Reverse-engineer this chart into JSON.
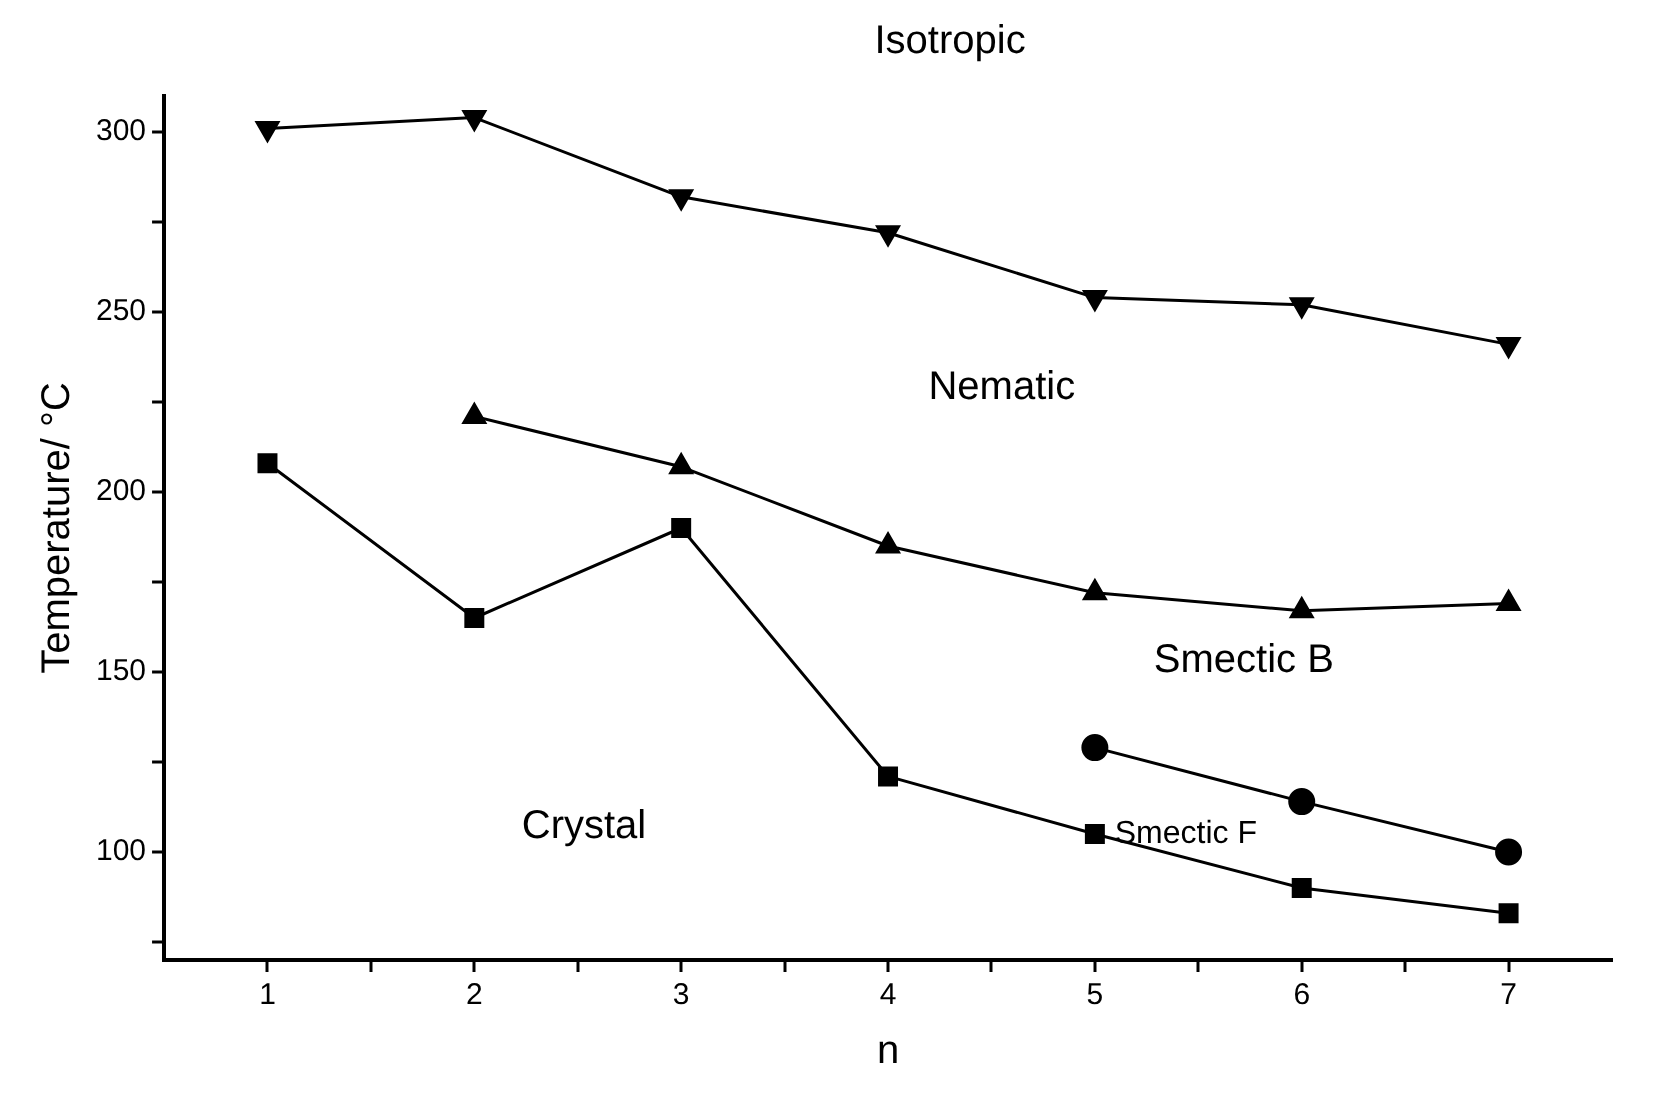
{
  "chart_data": {
    "type": "line",
    "xlabel": "n",
    "ylabel": "Temperature/ °C",
    "x": [
      1,
      2,
      3,
      4,
      5,
      6,
      7
    ],
    "series": [
      {
        "color": "#000000",
        "marker": "triangle",
        "values": [
          301,
          304,
          282,
          272,
          254,
          252,
          241
        ]
      },
      {
        "color": "#000000",
        "marker": "triangle",
        "values": [
          null,
          221,
          207,
          185,
          172,
          167,
          169
        ]
      },
      {
        "color": "#000000",
        "marker": "square",
        "values": [
          208,
          165,
          190,
          121,
          105,
          90,
          83
        ]
      },
      {
        "color": "#000000",
        "marker": "circle",
        "values": [
          null,
          null,
          null,
          null,
          129,
          114,
          100
        ]
      }
    ],
    "xlim": [
      0.5,
      7.5
    ],
    "ylim": [
      70,
      310
    ],
    "xticks": [
      1,
      {
        "value": 1.5,
        "label": null
      },
      2,
      {
        "value": 2.5,
        "label": null
      },
      3,
      {
        "value": 3.5,
        "label": null
      },
      4,
      {
        "value": 4.5,
        "label": null
      },
      5,
      {
        "value": 5.5,
        "label": null
      },
      6,
      {
        "value": 6.5,
        "label": null
      },
      7
    ],
    "yticks": [
      {
        "value": 75,
        "label": null
      },
      100,
      {
        "value": 125,
        "label": null
      },
      150,
      {
        "value": 175,
        "label": null
      },
      200,
      {
        "value": 225,
        "label": null
      },
      250,
      {
        "value": 275,
        "label": null
      },
      300
    ],
    "annotations": [
      "Isotropic",
      "Nematic",
      "Smectic B",
      "Crystal",
      "Smectic F"
    ],
    "grid": false,
    "legend": false,
    "line_style": "solid"
  }
}
